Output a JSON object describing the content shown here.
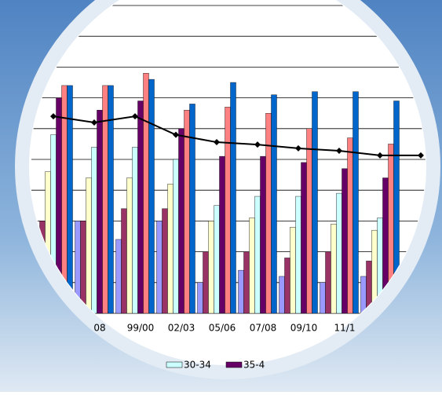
{
  "chart_data": {
    "type": "bar",
    "categories": [
      null,
      "08",
      "99/00",
      "02/03",
      "05/06",
      "07/08",
      "09/10",
      "11/1",
      null,
      null
    ],
    "series": [
      {
        "color": "#9999ff",
        "values": [
          2.2,
          3.0,
          2.4,
          3.0,
          1.0,
          1.4,
          1.2,
          1.0,
          1.2,
          null
        ]
      },
      {
        "color": "#993366",
        "values": [
          3.0,
          3.0,
          3.4,
          3.4,
          2.0,
          2.0,
          1.8,
          2.0,
          1.7,
          null
        ]
      },
      {
        "color": "#ffffcc",
        "values": [
          4.6,
          4.4,
          4.4,
          4.2,
          3.0,
          3.1,
          2.8,
          2.9,
          2.7,
          null
        ]
      },
      {
        "name": "30-34",
        "color": "#ccffff",
        "values": [
          5.8,
          5.4,
          5.4,
          5.0,
          3.5,
          3.8,
          3.8,
          3.9,
          3.1,
          null
        ]
      },
      {
        "name": "35-4",
        "color": "#660066",
        "values": [
          7.0,
          6.6,
          6.9,
          6.0,
          5.1,
          5.1,
          4.9,
          4.7,
          4.4,
          null
        ]
      },
      {
        "color": "#ff8080",
        "values": [
          7.4,
          7.4,
          7.8,
          6.6,
          6.7,
          6.5,
          6.0,
          5.7,
          5.5,
          null
        ]
      },
      {
        "color": "#0066cc",
        "values": [
          7.4,
          7.4,
          7.6,
          6.8,
          7.5,
          7.1,
          7.2,
          7.2,
          6.9,
          null
        ]
      }
    ],
    "line": {
      "color": "#000000",
      "values": [
        6.4,
        6.2,
        6.4,
        5.8,
        5.56,
        5.48,
        5.36,
        5.28,
        5.13,
        5.13
      ]
    },
    "ylim": [
      0,
      10
    ],
    "yticks": [
      0,
      1,
      2,
      3,
      4,
      5,
      6,
      7,
      8,
      9,
      10
    ],
    "grid": true
  }
}
